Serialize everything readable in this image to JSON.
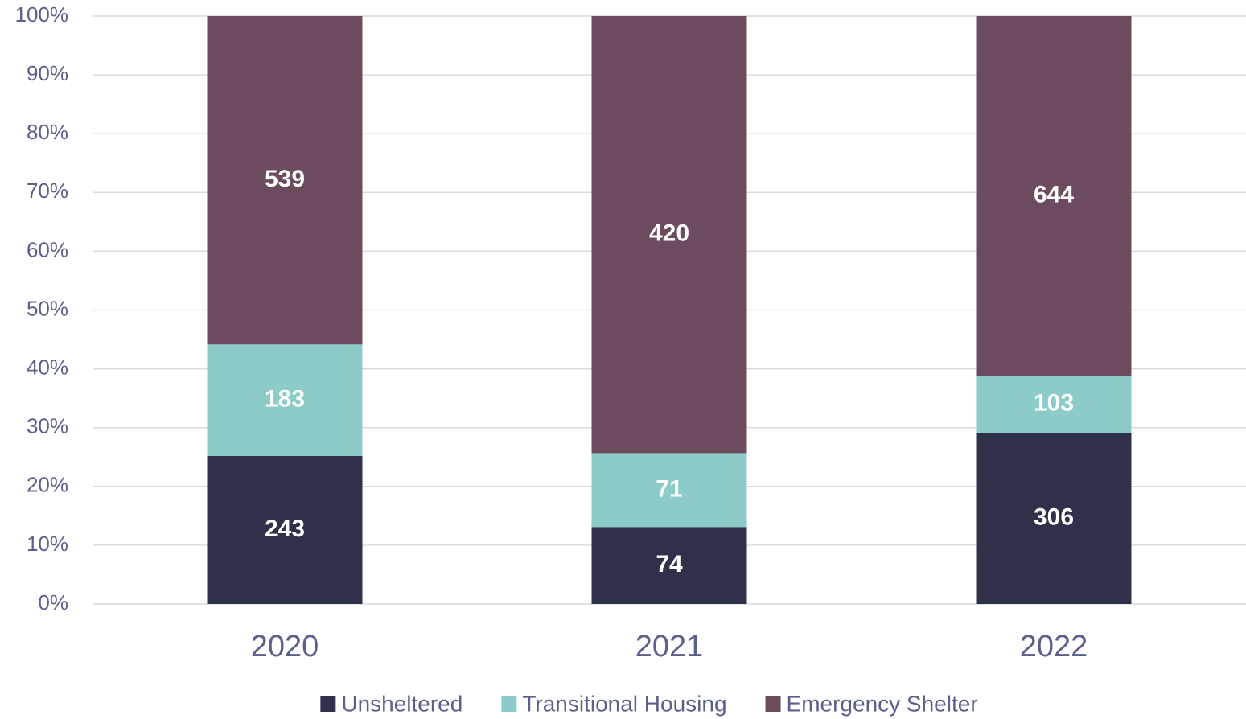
{
  "chart_data": {
    "type": "bar",
    "stacked": "percent",
    "categories": [
      "2020",
      "2021",
      "2022"
    ],
    "series": [
      {
        "name": "Unsheltered",
        "color": "#2f3049",
        "values": [
          243,
          74,
          306
        ]
      },
      {
        "name": "Transitional Housing",
        "color": "#8ccbc8",
        "values": [
          183,
          71,
          103
        ]
      },
      {
        "name": "Emergency Shelter",
        "color": "#6d4b5f",
        "values": [
          539,
          420,
          644
        ]
      }
    ],
    "ylim": [
      0,
      100
    ],
    "yticks": [
      {
        "value": 0,
        "label": "0%"
      },
      {
        "value": 10,
        "label": "10%"
      },
      {
        "value": 20,
        "label": "20%"
      },
      {
        "value": 30,
        "label": "30%"
      },
      {
        "value": 40,
        "label": "40%"
      },
      {
        "value": 50,
        "label": "50%"
      },
      {
        "value": 60,
        "label": "60%"
      },
      {
        "value": 70,
        "label": "70%"
      },
      {
        "value": 80,
        "label": "80%"
      },
      {
        "value": 90,
        "label": "90%"
      },
      {
        "value": 100,
        "label": "100%"
      }
    ],
    "grid": true,
    "legend": "bottom"
  }
}
